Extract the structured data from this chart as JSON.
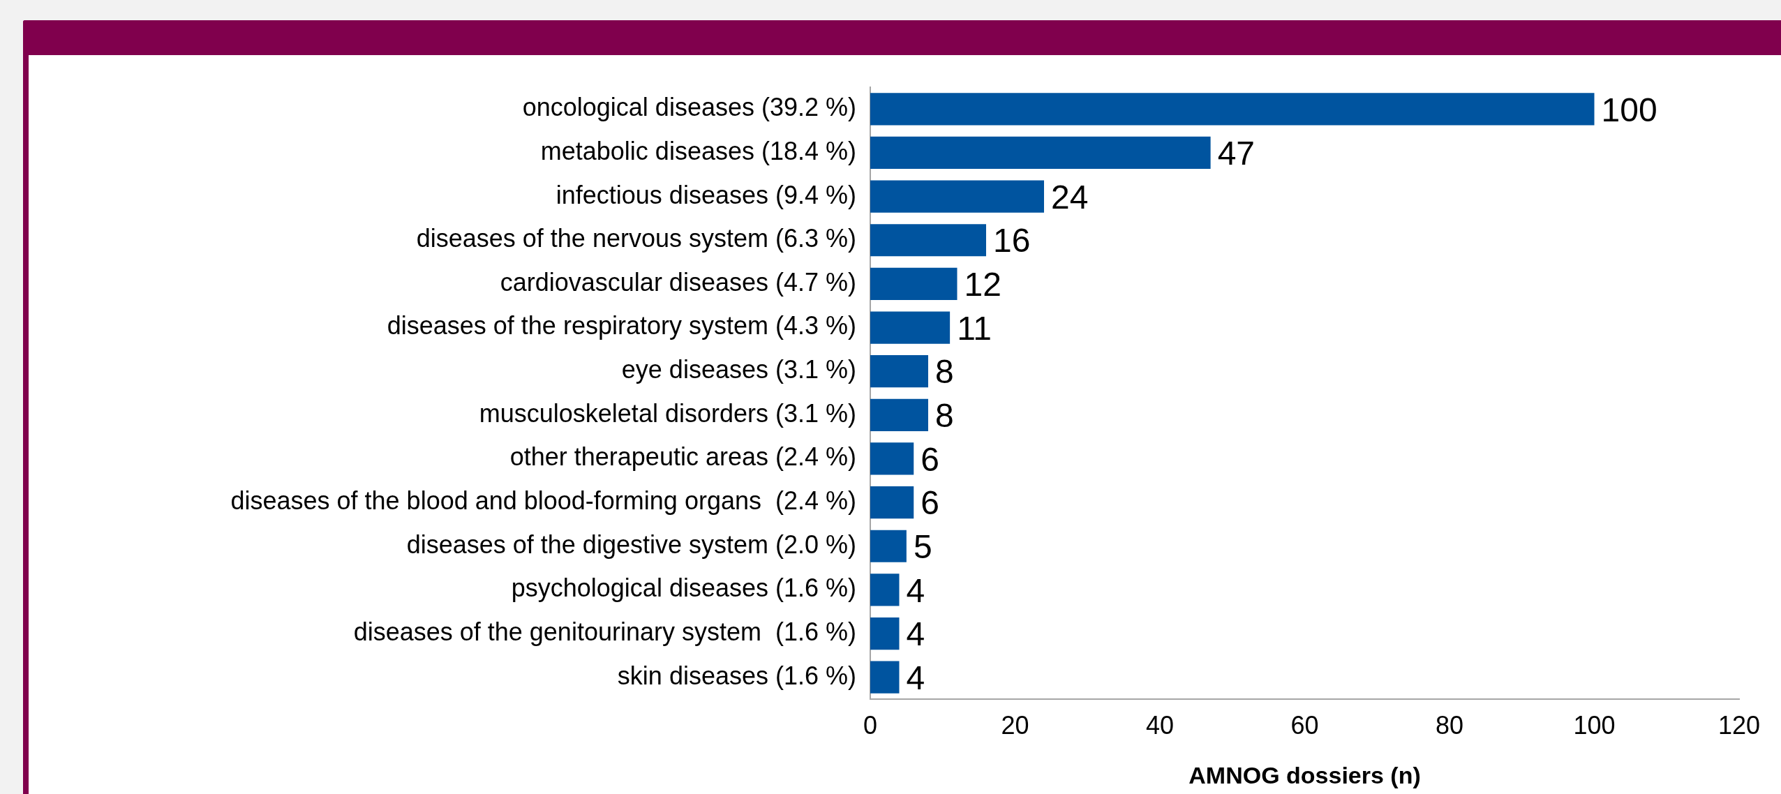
{
  "chart_data": {
    "type": "bar",
    "orientation": "horizontal",
    "xlabel": "AMNOG dossiers (n)",
    "categories": [
      "oncological diseases (39.2 %)",
      "metabolic diseases (18.4 %)",
      "infectious diseases (9.4 %)",
      "diseases of the nervous system (6.3 %)",
      "cardiovascular diseases (4.7 %)",
      "diseases of the respiratory system (4.3 %)",
      "eye diseases (3.1 %)",
      "musculoskeletal disorders (3.1 %)",
      "other therapeutic areas (2.4 %)",
      "diseases of the blood and blood-forming organs  (2.4 %)",
      "diseases of the digestive system (2.0 %)",
      "psychological diseases (1.6 %)",
      "diseases of the genitourinary system  (1.6 %)",
      "skin diseases (1.6 %)"
    ],
    "values": [
      100,
      47,
      24,
      16,
      12,
      11,
      8,
      8,
      6,
      6,
      5,
      4,
      4,
      4
    ],
    "color": "#00549f",
    "xlim": [
      0,
      120
    ],
    "xticks": [
      0,
      20,
      40,
      60,
      80,
      100,
      120
    ],
    "data_labels": true,
    "grid": false,
    "legend": false
  }
}
